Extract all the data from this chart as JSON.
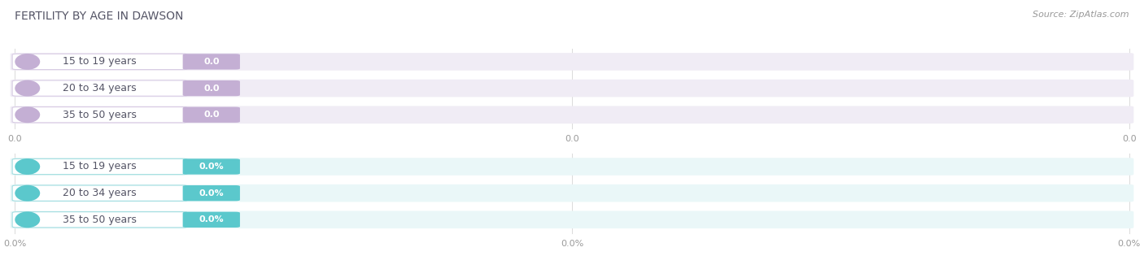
{
  "title": "Female Fertility by Age in Dawson",
  "title_display": "FERTILITY BY AGE IN DAWSON",
  "source": "Source: ZipAtlas.com",
  "background_color": "#ffffff",
  "sections": [
    {
      "rows": [
        {
          "label": "15 to 19 years",
          "value_str": "0.0"
        },
        {
          "label": "20 to 34 years",
          "value_str": "0.0"
        },
        {
          "label": "35 to 50 years",
          "value_str": "0.0"
        }
      ],
      "accent_color": "#c4afd4",
      "label_pill_border": "#d8cce4",
      "badge_color": "#c4afd4",
      "track_color": "#f0ecf5",
      "x_ticks": [
        "0.0",
        "0.0",
        "0.0"
      ]
    },
    {
      "rows": [
        {
          "label": "15 to 19 years",
          "value_str": "0.0%"
        },
        {
          "label": "20 to 34 years",
          "value_str": "0.0%"
        },
        {
          "label": "35 to 50 years",
          "value_str": "0.0%"
        }
      ],
      "accent_color": "#5bc8cc",
      "label_pill_border": "#a0dde0",
      "badge_color": "#5bc8cc",
      "track_color": "#eaf7f8",
      "x_ticks": [
        "0.0%",
        "0.0%",
        "0.0%"
      ]
    }
  ],
  "title_fontsize": 10,
  "source_fontsize": 8,
  "label_fontsize": 9,
  "value_fontsize": 8,
  "tick_fontsize": 8
}
